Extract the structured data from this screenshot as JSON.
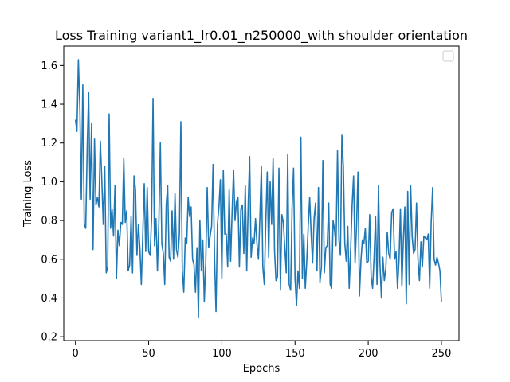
{
  "chart_data": {
    "type": "line",
    "title": "Loss Training variant1_lr0.01_n250000_with shoulder orientation",
    "xlabel": "Epochs",
    "ylabel": "Training Loss",
    "xlim": [
      -8,
      262
    ],
    "ylim": [
      0.18,
      1.7
    ],
    "xticks": [
      0,
      50,
      100,
      150,
      200,
      250
    ],
    "yticks": [
      0.2,
      0.4,
      0.6,
      0.8,
      1.0,
      1.2,
      1.4,
      1.6
    ],
    "grid": false,
    "legend": {
      "position": "top-right",
      "entries": []
    },
    "line_color": "#1f77b4",
    "series": [
      {
        "values": [
          1.32,
          1.26,
          1.63,
          1.38,
          0.91,
          1.5,
          0.78,
          0.76,
          1.17,
          1.46,
          0.91,
          1.3,
          0.65,
          1.22,
          0.88,
          0.92,
          0.87,
          1.21,
          1.01,
          0.78,
          1.08,
          0.53,
          0.56,
          1.35,
          0.76,
          0.86,
          0.72,
          0.98,
          0.5,
          0.75,
          0.67,
          0.79,
          0.78,
          1.12,
          0.79,
          0.85,
          0.54,
          0.57,
          0.82,
          0.53,
          1.03,
          0.96,
          0.62,
          0.78,
          0.66,
          0.47,
          0.73,
          0.99,
          0.64,
          0.97,
          0.64,
          0.62,
          0.81,
          1.43,
          0.67,
          0.81,
          0.54,
          0.8,
          1.2,
          0.68,
          0.63,
          0.47,
          0.88,
          0.98,
          0.61,
          0.59,
          0.85,
          0.6,
          0.94,
          0.65,
          0.61,
          0.73,
          1.31,
          0.54,
          0.43,
          0.71,
          0.68,
          0.92,
          0.82,
          0.87,
          0.6,
          0.57,
          0.43,
          0.66,
          0.3,
          0.8,
          0.54,
          0.7,
          0.38,
          0.58,
          0.97,
          0.66,
          0.72,
          0.77,
          1.09,
          0.61,
          0.33,
          0.78,
          0.87,
          1.01,
          0.5,
          1.06,
          0.73,
          0.73,
          0.56,
          0.96,
          0.59,
          0.84,
          1.06,
          0.8,
          0.9,
          0.92,
          0.56,
          0.86,
          0.88,
          0.63,
          0.98,
          0.54,
          0.88,
          1.13,
          0.61,
          0.71,
          0.68,
          0.81,
          0.68,
          0.6,
          0.82,
          1.08,
          0.56,
          0.47,
          0.79,
          1.05,
          0.61,
          1.0,
          0.78,
          1.12,
          0.64,
          0.49,
          0.51,
          1.07,
          0.44,
          0.83,
          0.79,
          0.66,
          0.53,
          1.14,
          0.47,
          0.44,
          0.87,
          1.07,
          0.5,
          0.36,
          0.54,
          0.45,
          1.23,
          0.5,
          0.73,
          0.45,
          0.59,
          0.77,
          0.92,
          0.73,
          0.58,
          0.81,
          0.89,
          0.54,
          0.97,
          0.48,
          0.56,
          1.11,
          0.53,
          0.66,
          0.67,
          0.89,
          0.47,
          0.45,
          0.8,
          0.75,
          0.67,
          1.16,
          0.7,
          0.62,
          1.24,
          1.08,
          0.68,
          0.59,
          0.77,
          0.45,
          0.65,
          0.88,
          1.03,
          0.58,
          0.77,
          1.05,
          0.41,
          0.59,
          0.7,
          0.68,
          0.76,
          0.58,
          0.59,
          0.83,
          0.51,
          0.45,
          0.61,
          0.82,
          0.47,
          0.98,
          0.58,
          0.4,
          0.61,
          0.49,
          0.55,
          0.74,
          0.63,
          0.6,
          0.84,
          0.86,
          0.6,
          0.64,
          0.45,
          0.59,
          0.86,
          0.46,
          0.7,
          0.87,
          0.37,
          0.95,
          0.47,
          0.98,
          0.72,
          0.63,
          0.65,
          0.89,
          0.6,
          0.49,
          0.69,
          0.56,
          0.72,
          0.71,
          0.7,
          0.73,
          0.45,
          0.79,
          0.97,
          0.6,
          0.57,
          0.61,
          0.58,
          0.54,
          0.38
        ]
      }
    ]
  }
}
